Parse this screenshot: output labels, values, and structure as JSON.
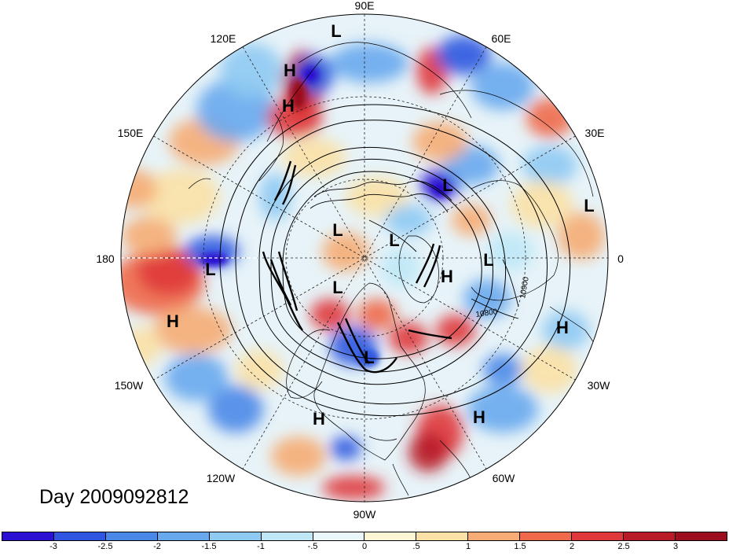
{
  "title": "Day 2009092812",
  "longitude_labels": {
    "lon_90e": "90E",
    "lon_60e": "60E",
    "lon_30e": "30E",
    "lon_0": "0",
    "lon_30w": "30W",
    "lon_60w": "60W",
    "lon_90w": "90W",
    "lon_120w": "120W",
    "lon_150w": "150W",
    "lon_180": "180",
    "lon_150e": "150E",
    "lon_120e": "120E"
  },
  "contour_labels": [
    "10900",
    "10800"
  ],
  "pressure_centers": [
    {
      "type": "L"
    },
    {
      "type": "H"
    },
    {
      "type": "H"
    },
    {
      "type": "L"
    },
    {
      "type": "L"
    },
    {
      "type": "L"
    },
    {
      "type": "L"
    },
    {
      "type": "L"
    },
    {
      "type": "H"
    },
    {
      "type": "L"
    },
    {
      "type": "L"
    },
    {
      "type": "H"
    },
    {
      "type": "H"
    },
    {
      "type": "L"
    },
    {
      "type": "H"
    },
    {
      "type": "H"
    }
  ],
  "colorbar": {
    "ticks": [
      "-3",
      "-2.5",
      "-2",
      "-1.5",
      "-1",
      "-.5",
      "0",
      ".5",
      "1",
      "1.5",
      "2",
      "2.5",
      "3"
    ],
    "colors": [
      "#2a10d2",
      "#2f56e0",
      "#4a88e8",
      "#68a9ee",
      "#8fcaf3",
      "#bfe8f7",
      "#e9f7fb",
      "#fdf6d4",
      "#fbe1a5",
      "#f6ac74",
      "#ef6a4b",
      "#e0383a",
      "#b81c28",
      "#9a0e1e"
    ]
  }
}
